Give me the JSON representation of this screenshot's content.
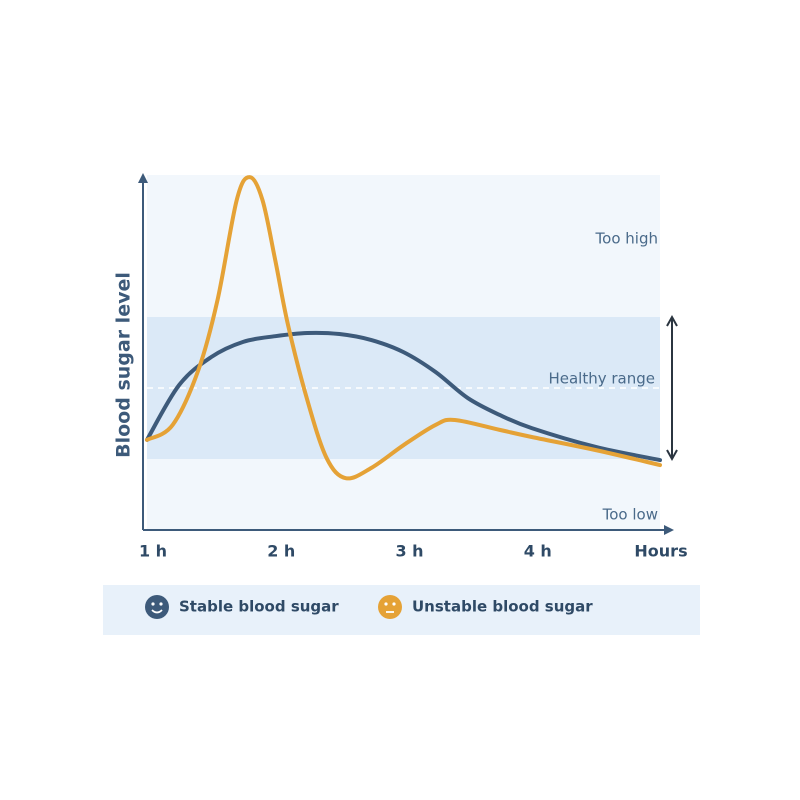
{
  "chart_data": {
    "type": "line",
    "y_label": "Blood sugar level",
    "x_label": "Hours",
    "xlim": [
      1,
      5
    ],
    "ylim": [
      0,
      100
    ],
    "xticks": [
      {
        "value": 1,
        "label": "1 h"
      },
      {
        "value": 2,
        "label": "2 h"
      },
      {
        "value": 3,
        "label": "3 h"
      },
      {
        "value": 4,
        "label": "4 h"
      }
    ],
    "annotations": {
      "too_high": "Too high",
      "healthy_range": "Healthy range",
      "too_low": "Too low"
    },
    "healthy_range": [
      20,
      60
    ],
    "series": [
      {
        "name": "Stable blood sugar",
        "color": "#3d5a7a",
        "x": [
          1,
          1.25,
          1.5,
          1.75,
          2,
          2.25,
          2.5,
          2.75,
          3,
          3.25,
          3.5,
          3.75,
          4,
          4.5,
          5
        ],
        "values": [
          25.4,
          40.8,
          48.7,
          53,
          54.6,
          55.5,
          55.2,
          53.5,
          50.1,
          44.5,
          37.2,
          32.4,
          28.7,
          23.4,
          19.7
        ]
      },
      {
        "name": "Unstable blood sugar",
        "color": "#e5a236",
        "x": [
          1,
          1.2,
          1.4,
          1.55,
          1.7,
          1.8,
          1.9,
          2,
          2.1,
          2.25,
          2.4,
          2.55,
          2.75,
          3,
          3.25,
          3.4,
          3.75,
          4,
          4.5,
          5
        ],
        "values": [
          25.4,
          29.6,
          45,
          64.8,
          93,
          99.4,
          93,
          76,
          57.7,
          36.6,
          20.3,
          14.6,
          17.5,
          23.9,
          29.6,
          31,
          28.2,
          26.2,
          22.5,
          18.3
        ]
      }
    ]
  }
}
